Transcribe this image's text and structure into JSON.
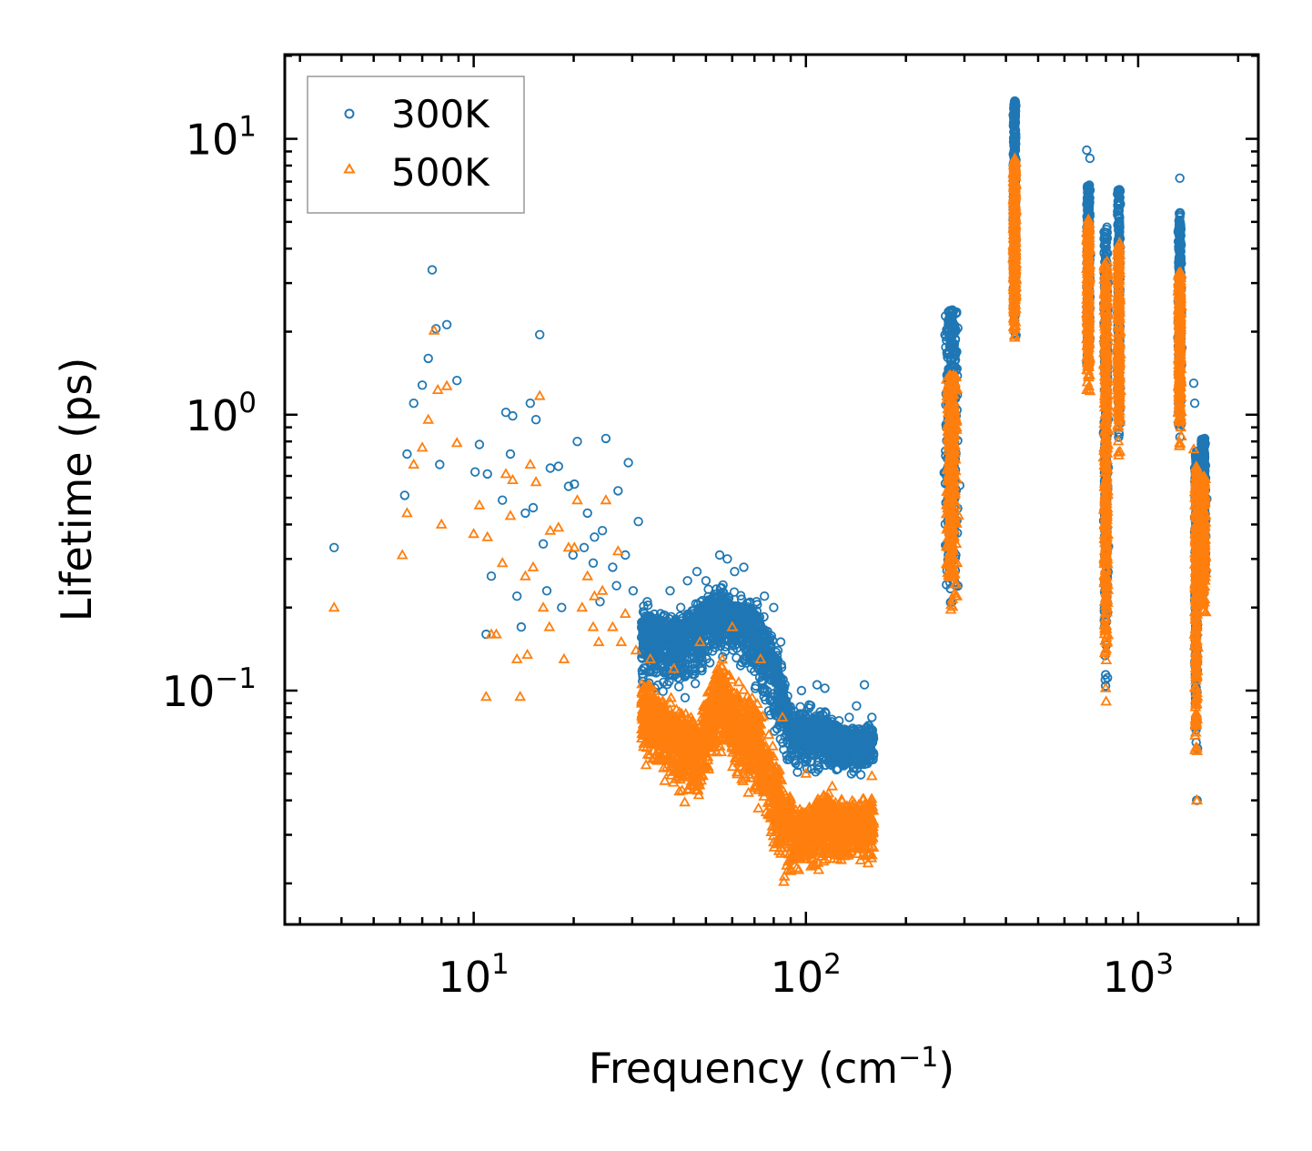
{
  "chart_data": {
    "type": "scatter",
    "xscale": "log",
    "yscale": "log",
    "xlim": [
      2.7,
      2300
    ],
    "ylim": [
      0.0142,
      20.2
    ],
    "xlabel": "Frequency (cm",
    "xlabel_sup": "−1",
    "xlabel_end": ")",
    "ylabel": "Lifetime (ps)",
    "x_ticks": [
      {
        "value": 10,
        "base": "10",
        "exp": "1"
      },
      {
        "value": 100,
        "base": "10",
        "exp": "2"
      },
      {
        "value": 1000,
        "base": "10",
        "exp": "3"
      }
    ],
    "y_ticks": [
      {
        "value": 0.1,
        "base": "10",
        "exp": "−1"
      },
      {
        "value": 1,
        "base": "10",
        "exp": "0"
      },
      {
        "value": 10,
        "base": "10",
        "exp": "1"
      }
    ],
    "legend_position": "top-left",
    "series": [
      {
        "name": "300K",
        "marker": "circle",
        "color": "#1f77b4",
        "points": [
          [
            3.8,
            0.33
          ],
          [
            6.2,
            0.51
          ],
          [
            6.3,
            0.72
          ],
          [
            6.6,
            1.1
          ],
          [
            7.0,
            1.28
          ],
          [
            7.3,
            1.6
          ],
          [
            7.5,
            3.35
          ],
          [
            7.7,
            2.05
          ],
          [
            7.9,
            0.66
          ],
          [
            8.3,
            2.12
          ],
          [
            8.9,
            1.33
          ],
          [
            10.1,
            0.62
          ],
          [
            10.4,
            0.78
          ],
          [
            10.9,
            0.16
          ],
          [
            11.0,
            0.61
          ],
          [
            11.3,
            0.26
          ],
          [
            12.2,
            0.49
          ],
          [
            12.5,
            1.02
          ],
          [
            12.9,
            0.72
          ],
          [
            13.1,
            0.99
          ],
          [
            13.5,
            0.22
          ],
          [
            14.3,
            0.44
          ],
          [
            14.8,
            1.1
          ],
          [
            15.1,
            0.46
          ],
          [
            15.4,
            0.96
          ],
          [
            15.8,
            1.95
          ],
          [
            16.2,
            0.34
          ],
          [
            17.0,
            0.64
          ],
          [
            18.0,
            0.65
          ],
          [
            19.3,
            0.55
          ],
          [
            20.1,
            0.56
          ],
          [
            20.5,
            0.8
          ],
          [
            22.0,
            0.44
          ],
          [
            22.9,
            0.29
          ],
          [
            23.1,
            0.36
          ],
          [
            24.4,
            0.38
          ],
          [
            25.0,
            0.82
          ],
          [
            26.2,
            0.28
          ],
          [
            27.2,
            0.53
          ],
          [
            28.6,
            0.31
          ],
          [
            29.2,
            0.67
          ],
          [
            31.3,
            0.41
          ],
          [
            39.0,
            0.23
          ],
          [
            44.0,
            0.25
          ],
          [
            47.0,
            0.27
          ],
          [
            55.0,
            0.31
          ],
          [
            58.0,
            0.3
          ],
          [
            61.0,
            0.27
          ],
          [
            65.0,
            0.28
          ],
          [
            75.0,
            0.22
          ],
          [
            80.0,
            0.2
          ],
          [
            90.0,
            0.085
          ],
          [
            108.0,
            0.105
          ],
          [
            114.0,
            0.102
          ],
          [
            135.0,
            0.08
          ],
          [
            150.0,
            0.105
          ],
          [
            158.0,
            0.08
          ],
          [
            13.9,
            0.17
          ],
          [
            16.6,
            0.23
          ],
          [
            18.4,
            0.2
          ],
          [
            19.9,
            0.31
          ],
          [
            21.5,
            0.33
          ],
          [
            24.0,
            0.21
          ],
          [
            26.9,
            0.24
          ],
          [
            30.2,
            0.23
          ],
          [
            33.3,
            0.21
          ],
          [
            36.5,
            0.19
          ],
          [
            42.0,
            0.2
          ],
          [
            50.0,
            0.25
          ],
          [
            71.0,
            0.21
          ],
          [
            84.0,
            0.15
          ],
          [
            97.0,
            0.1
          ],
          [
            123.0,
            0.075
          ],
          [
            142.0,
            0.088
          ],
          [
            1500,
            0.04
          ],
          [
            1505,
            0.04
          ],
          [
            1470,
            1.3
          ],
          [
            1480,
            1.1
          ],
          [
            1335,
            7.2
          ],
          [
            700,
            9.1
          ],
          [
            716,
            8.5
          ],
          [
            870,
            6.4
          ],
          [
            875,
            5.9
          ]
        ],
        "clusters": [
          {
            "x": [
              32,
              160
            ],
            "y": [
              0.04,
              0.24
            ],
            "count": 2400,
            "shape": [
              [
                32,
                0.16,
                0.085,
                0.23
              ],
              [
                42,
                0.15,
                0.075,
                0.2
              ],
              [
                55,
                0.2,
                0.12,
                0.26
              ],
              [
                68,
                0.17,
                0.09,
                0.23
              ],
              [
                80,
                0.12,
                0.055,
                0.19
              ],
              [
                90,
                0.07,
                0.045,
                0.09
              ],
              [
                110,
                0.07,
                0.045,
                0.095
              ],
              [
                130,
                0.065,
                0.045,
                0.08
              ],
              [
                158,
                0.065,
                0.045,
                0.08
              ]
            ]
          },
          {
            "x": [
              255,
              295
            ],
            "y": [
              0.2,
              2.4
            ],
            "count": 450
          },
          {
            "x": [
              418,
              432
            ],
            "y": [
              1.9,
              13.8
            ],
            "count": 450
          },
          {
            "x": [
              695,
              722
            ],
            "y": [
              1.5,
              6.8
            ],
            "count": 280
          },
          {
            "x": [
              780,
              820
            ],
            "y": [
              0.1,
              4.8
            ],
            "count": 420
          },
          {
            "x": [
              860,
              890
            ],
            "y": [
              0.8,
              6.6
            ],
            "count": 260
          },
          {
            "x": [
              1310,
              1360
            ],
            "y": [
              0.8,
              5.4
            ],
            "count": 300
          },
          {
            "x": [
              1470,
              1520
            ],
            "y": [
              0.06,
              0.75
            ],
            "count": 260
          },
          {
            "x": [
              1520,
              1620
            ],
            "y": [
              0.22,
              0.82
            ],
            "count": 360
          }
        ]
      },
      {
        "name": "500K",
        "marker": "triangle",
        "color": "#ff7f0e",
        "points": [
          [
            3.8,
            0.2
          ],
          [
            6.1,
            0.31
          ],
          [
            6.3,
            0.44
          ],
          [
            6.6,
            0.66
          ],
          [
            7.0,
            0.76
          ],
          [
            7.3,
            0.96
          ],
          [
            7.6,
            2.02
          ],
          [
            7.8,
            1.23
          ],
          [
            8.0,
            0.4
          ],
          [
            8.3,
            1.27
          ],
          [
            8.9,
            0.79
          ],
          [
            10.0,
            0.37
          ],
          [
            10.4,
            0.47
          ],
          [
            10.9,
            0.095
          ],
          [
            11.0,
            0.36
          ],
          [
            11.3,
            0.16
          ],
          [
            12.2,
            0.29
          ],
          [
            12.5,
            0.61
          ],
          [
            12.9,
            0.43
          ],
          [
            13.1,
            0.58
          ],
          [
            13.5,
            0.13
          ],
          [
            14.3,
            0.26
          ],
          [
            14.8,
            0.66
          ],
          [
            15.1,
            0.28
          ],
          [
            15.4,
            0.57
          ],
          [
            15.8,
            1.17
          ],
          [
            16.2,
            0.2
          ],
          [
            17.0,
            0.38
          ],
          [
            18.0,
            0.39
          ],
          [
            19.3,
            0.33
          ],
          [
            20.1,
            0.33
          ],
          [
            20.5,
            0.49
          ],
          [
            22.0,
            0.26
          ],
          [
            22.9,
            0.17
          ],
          [
            23.1,
            0.22
          ],
          [
            24.4,
            0.23
          ],
          [
            25.0,
            0.49
          ],
          [
            26.2,
            0.17
          ],
          [
            27.2,
            0.32
          ],
          [
            28.6,
            0.19
          ],
          [
            11.7,
            0.16
          ],
          [
            13.8,
            0.095
          ],
          [
            14.5,
            0.135
          ],
          [
            16.9,
            0.17
          ],
          [
            18.7,
            0.13
          ],
          [
            21.2,
            0.2
          ],
          [
            23.8,
            0.15
          ],
          [
            27.8,
            0.15
          ],
          [
            30.8,
            0.14
          ],
          [
            34.0,
            0.13
          ],
          [
            40.0,
            0.12
          ],
          [
            48.0,
            0.15
          ],
          [
            60.0,
            0.17
          ],
          [
            73.0,
            0.13
          ],
          [
            85.0,
            0.08
          ],
          [
            100.0,
            0.05
          ],
          [
            120.0,
            0.045
          ],
          [
            158.0,
            0.049
          ],
          [
            1500,
            0.04
          ],
          [
            1505,
            0.04
          ],
          [
            1320,
            2.8
          ],
          [
            1470,
            0.75
          ],
          [
            708,
            5.1
          ],
          [
            878,
            3.7
          ]
        ],
        "clusters": [
          {
            "x": [
              32,
              160
            ],
            "y": [
              0.018,
              0.15
            ],
            "count": 2600,
            "shape": [
              [
                32,
                0.085,
                0.05,
                0.13
              ],
              [
                40,
                0.07,
                0.034,
                0.1
              ],
              [
                48,
                0.06,
                0.034,
                0.09
              ],
              [
                55,
                0.1,
                0.05,
                0.15
              ],
              [
                62,
                0.075,
                0.04,
                0.12
              ],
              [
                70,
                0.07,
                0.035,
                0.11
              ],
              [
                78,
                0.045,
                0.022,
                0.08
              ],
              [
                88,
                0.032,
                0.018,
                0.05
              ],
              [
                100,
                0.03,
                0.02,
                0.04
              ],
              [
                112,
                0.036,
                0.018,
                0.05
              ],
              [
                125,
                0.032,
                0.02,
                0.042
              ],
              [
                140,
                0.034,
                0.02,
                0.045
              ],
              [
                158,
                0.033,
                0.02,
                0.045
              ]
            ]
          },
          {
            "x": [
              258,
              292
            ],
            "y": [
              0.19,
              1.4
            ],
            "count": 420
          },
          {
            "x": [
              418,
              432
            ],
            "y": [
              1.85,
              8.5
            ],
            "count": 420
          },
          {
            "x": [
              695,
              722
            ],
            "y": [
              1.2,
              5.0
            ],
            "count": 260
          },
          {
            "x": [
              780,
              820
            ],
            "y": [
              0.09,
              3.6
            ],
            "count": 400
          },
          {
            "x": [
              860,
              890
            ],
            "y": [
              0.7,
              4.2
            ],
            "count": 240
          },
          {
            "x": [
              1310,
              1360
            ],
            "y": [
              0.75,
              3.3
            ],
            "count": 280
          },
          {
            "x": [
              1470,
              1520
            ],
            "y": [
              0.05,
              0.65
            ],
            "count": 240
          },
          {
            "x": [
              1520,
              1620
            ],
            "y": [
              0.19,
              0.6
            ],
            "count": 340
          }
        ]
      }
    ]
  }
}
